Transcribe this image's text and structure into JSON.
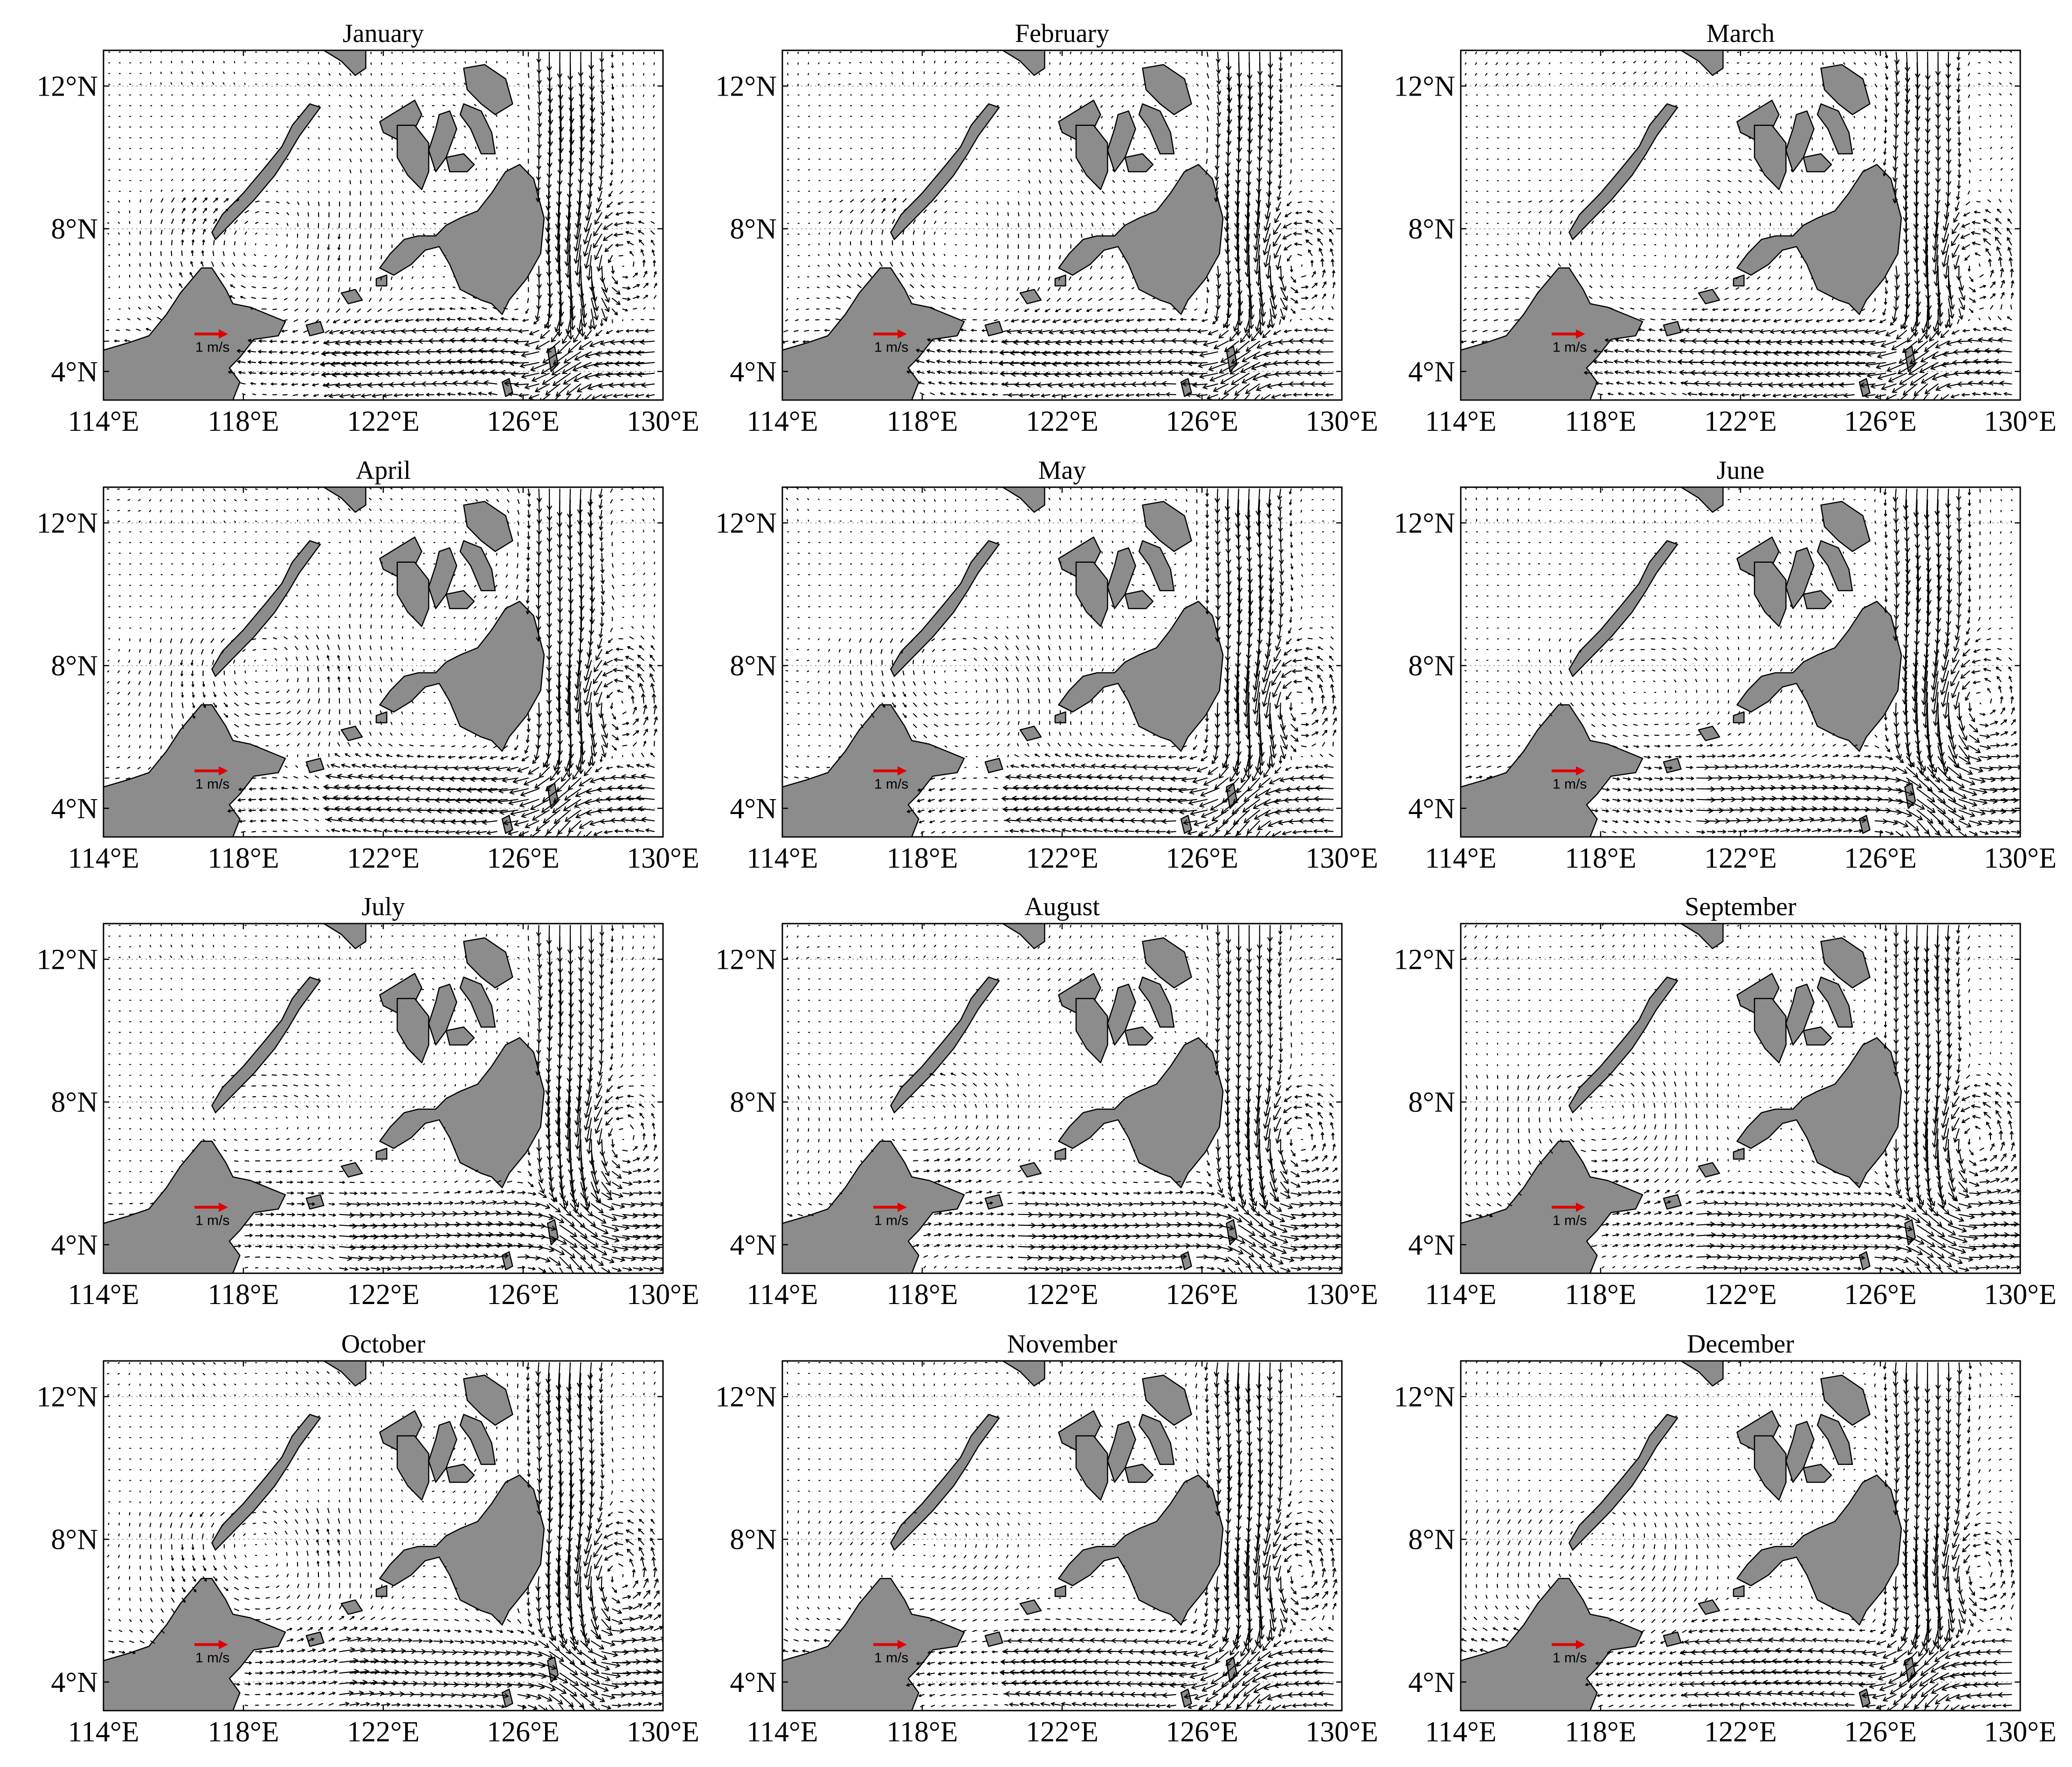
{
  "figure": {
    "accent_color": "#e00000",
    "land_color": "#8c8c8c",
    "panels": [
      {
        "title": "January"
      },
      {
        "title": "February"
      },
      {
        "title": "March"
      },
      {
        "title": "April"
      },
      {
        "title": "May"
      },
      {
        "title": "June"
      },
      {
        "title": "July"
      },
      {
        "title": "August"
      },
      {
        "title": "September"
      },
      {
        "title": "October"
      },
      {
        "title": "November"
      },
      {
        "title": "December"
      }
    ],
    "x_ticks": [
      "114°E",
      "118°E",
      "122°E",
      "126°E",
      "130°E"
    ],
    "y_ticks": [
      "12°N",
      "8°N",
      "4°N"
    ],
    "scale_label": "1 m/s"
  },
  "chart_data": {
    "type": "vector-field-map",
    "layout": "4x3 small multiples",
    "x_range": [
      114,
      130
    ],
    "y_range": [
      3.2,
      13
    ],
    "x_tick_values": [
      114,
      118,
      122,
      126,
      130
    ],
    "y_tick_values": [
      12,
      8,
      4
    ],
    "reference_vector": {
      "speed": 1,
      "unit": "m/s",
      "lon": 116.6,
      "lat": 5.05
    },
    "panels": [
      "January",
      "February",
      "March",
      "April",
      "May",
      "June",
      "July",
      "August",
      "September",
      "October",
      "November",
      "December"
    ]
  }
}
